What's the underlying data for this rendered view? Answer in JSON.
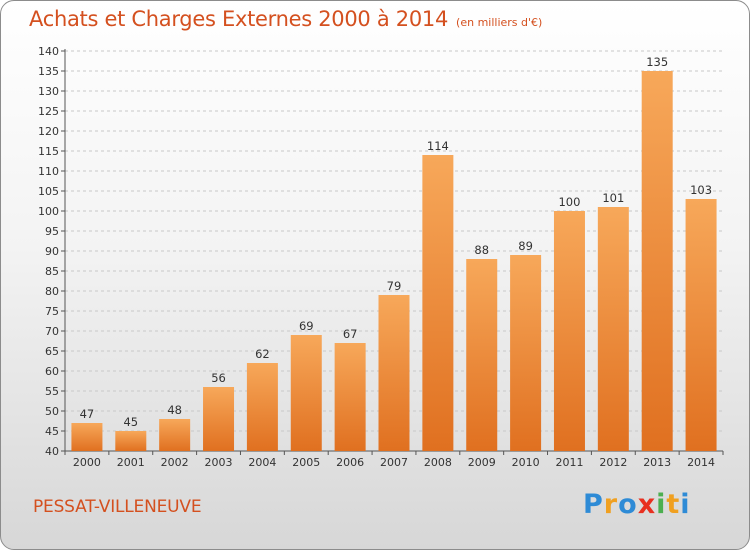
{
  "header": {
    "title": "Achats et Charges Externes 2000 à 2014",
    "unit": "(en milliers d'€)"
  },
  "footer": {
    "commune": "PESSAT-VILLENEUVE",
    "logo": [
      "P",
      "r",
      "o",
      "x",
      "i",
      "t",
      "i"
    ]
  },
  "colors": {
    "accent": "#d4501f",
    "bar_top": "#f7a85a",
    "bar_bottom": "#e07020",
    "logo": [
      "#2e8bd6",
      "#f0a020",
      "#2e8bd6",
      "#e83020",
      "#4caf50",
      "#f0a020",
      "#2e8bd6"
    ]
  },
  "chart_data": {
    "type": "bar",
    "title": "Achats et Charges Externes 2000 à 2014",
    "subtitle": "(en milliers d'€)",
    "categories": [
      "2000",
      "2001",
      "2002",
      "2003",
      "2004",
      "2005",
      "2006",
      "2007",
      "2008",
      "2009",
      "2010",
      "2011",
      "2012",
      "2013",
      "2014"
    ],
    "values": [
      47,
      45,
      48,
      56,
      62,
      69,
      67,
      79,
      114,
      88,
      89,
      100,
      101,
      135,
      103
    ],
    "ylim": [
      40,
      140
    ],
    "yticks": [
      40,
      45,
      50,
      55,
      60,
      65,
      70,
      75,
      80,
      85,
      90,
      95,
      100,
      105,
      110,
      115,
      120,
      125,
      130,
      135,
      140
    ],
    "grid": true,
    "legend": "none"
  }
}
